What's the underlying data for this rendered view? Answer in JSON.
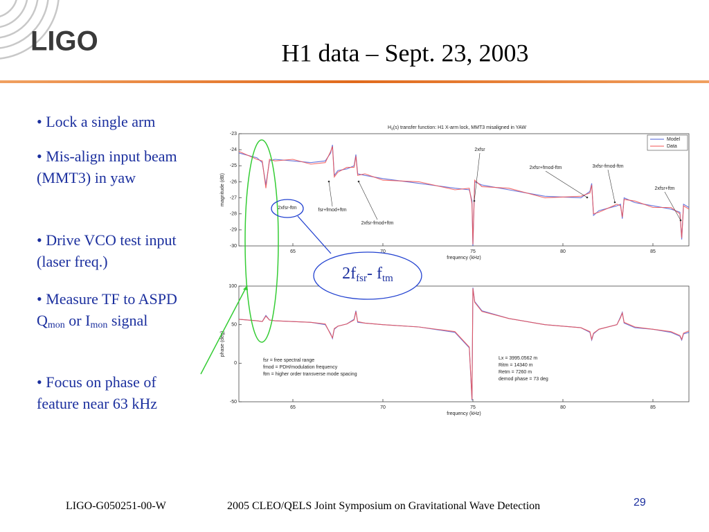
{
  "header": {
    "logo": "LIGO",
    "title": "H1 data – Sept. 23, 2003"
  },
  "bullets": [
    {
      "parts": [
        "• Lock a single arm"
      ]
    },
    {
      "parts": [
        "• Mis-align input beam (MMT3) in yaw"
      ]
    },
    {
      "parts": [
        "• Drive VCO test input (laser freq.)"
      ]
    },
    {
      "parts": [
        "• Measure TF to ASPD Q",
        "mon",
        " or I",
        "mon",
        " signal"
      ]
    },
    {
      "parts": [
        "• Focus on phase of feature near 63 kHz"
      ]
    }
  ],
  "callout": {
    "parts": [
      "2f",
      "fsr",
      "- f",
      "tm"
    ]
  },
  "chart_data": [
    {
      "type": "line",
      "title": {
        "parts": [
          "H",
          "a",
          "(s) transfer function: H1  X-arm lock, MMT3 misaligned in YAW"
        ]
      },
      "xlabel": "frequency (kHz)",
      "ylabel": "magnitude (dB)",
      "x": [
        62,
        63,
        63.3,
        63.5,
        63.7,
        64,
        65,
        66,
        66.8,
        67.1,
        67.2,
        67.3,
        67.5,
        68,
        68.4,
        68.5,
        68.6,
        69,
        70,
        72,
        74,
        74.8,
        74.95,
        75,
        75.1,
        75.5,
        77,
        79,
        81,
        81.5,
        81.6,
        81.7,
        82,
        83,
        83.2,
        83.3,
        83.4,
        84,
        85,
        86,
        86.5,
        86.6,
        86.7,
        87
      ],
      "series": [
        {
          "name": "Model",
          "color": "#4a5cd6",
          "values": [
            -24.2,
            -24.5,
            -24.8,
            -26.2,
            -24.7,
            -24.6,
            -24.7,
            -24.8,
            -24.7,
            -24.2,
            -23.7,
            -25.6,
            -25.3,
            -25.2,
            -25.0,
            -24.3,
            -25.5,
            -25.6,
            -25.8,
            -26.1,
            -26.4,
            -26.5,
            -27.2,
            -30,
            -26.0,
            -26.2,
            -26.5,
            -26.9,
            -27.0,
            -26.6,
            -26.1,
            -28.1,
            -27.8,
            -27.5,
            -27.4,
            -28.3,
            -27.0,
            -27.3,
            -27.5,
            -27.7,
            -27.9,
            -29.6,
            -27.4,
            -27.6
          ]
        },
        {
          "name": "Data",
          "color": "#f05050",
          "values": [
            -24.1,
            -24.6,
            -24.7,
            -26.4,
            -24.6,
            -24.7,
            -24.6,
            -24.9,
            -24.8,
            -24.1,
            -23.8,
            -25.7,
            -25.4,
            -25.1,
            -25.1,
            -24.4,
            -25.6,
            -25.5,
            -25.9,
            -26.0,
            -26.5,
            -26.4,
            -27.4,
            -29.9,
            -25.9,
            -26.3,
            -26.4,
            -27.0,
            -26.9,
            -26.7,
            -26.2,
            -28.0,
            -27.9,
            -27.4,
            -27.5,
            -28.2,
            -27.1,
            -27.2,
            -27.6,
            -27.6,
            -28.0,
            -29.5,
            -27.5,
            -27.7
          ]
        }
      ],
      "xlim": [
        62,
        87
      ],
      "xticks": [
        65,
        70,
        75,
        80,
        85
      ],
      "ylim": [
        -30,
        -23
      ],
      "yticks": [
        -30,
        -29,
        -28,
        -27,
        -26,
        -25,
        -24,
        -23
      ],
      "legend": "upper right",
      "annotations": [
        "2xfsr-ftm",
        "fsr+fmod+ftm",
        "2xfsr-fmod+ftm",
        "2xfsr",
        "2xfsr+fmod-ftm",
        "3xfsr-fmod-ftm",
        "2xfsr+ftm"
      ]
    },
    {
      "type": "line",
      "xlabel": "frequency (kHz)",
      "ylabel": "phase (deg)",
      "x": [
        62,
        63,
        63.3,
        63.5,
        63.7,
        64,
        65,
        66,
        66.8,
        67.1,
        67.2,
        67.3,
        67.5,
        68,
        68.4,
        68.5,
        68.6,
        69,
        70,
        72,
        74,
        74.8,
        74.95,
        75,
        75.1,
        75.5,
        77,
        79,
        81,
        81.5,
        81.6,
        81.7,
        82,
        83,
        83.2,
        83.3,
        83.4,
        84,
        85,
        86,
        86.5,
        86.6,
        86.7,
        87
      ],
      "series": [
        {
          "name": "Model",
          "color": "#4a5cd6",
          "values": [
            57,
            55,
            54,
            62,
            56,
            55,
            54,
            53,
            50,
            38,
            32,
            44,
            48,
            51,
            57,
            68,
            53,
            52,
            50,
            47,
            40,
            20,
            -48,
            98,
            80,
            68,
            58,
            50,
            46,
            40,
            30,
            38,
            44,
            50,
            60,
            66,
            52,
            46,
            44,
            40,
            35,
            30,
            38,
            40
          ]
        },
        {
          "name": "Data",
          "color": "#f05050",
          "values": [
            57,
            55,
            54,
            61,
            56,
            55,
            54,
            53,
            51,
            37,
            33,
            45,
            48,
            51,
            56,
            67,
            54,
            52,
            50,
            47,
            41,
            21,
            -47,
            97,
            79,
            67,
            58,
            50,
            46,
            41,
            31,
            39,
            44,
            50,
            59,
            65,
            53,
            47,
            44,
            41,
            36,
            31,
            39,
            42
          ]
        }
      ],
      "xlim": [
        62,
        87
      ],
      "xticks": [
        65,
        70,
        75,
        80,
        85
      ],
      "ylim": [
        -50,
        100
      ],
      "yticks": [
        -50,
        0,
        50,
        100
      ],
      "annotations": [
        "fsr = free spectral range",
        "fmod = PDH/modulation frequency",
        "ftm = higher order transverse mode spacing",
        "Lx = 3995.0562 m",
        "Ritm = 14340 m",
        "Retm = 7260 m",
        "demod phase = 73 deg"
      ]
    }
  ],
  "footer": {
    "doc_id": "LIGO-G050251-00-W",
    "event": "2005 CLEO/QELS Joint Symposium on Gravitational Wave Detection",
    "page": "29"
  }
}
